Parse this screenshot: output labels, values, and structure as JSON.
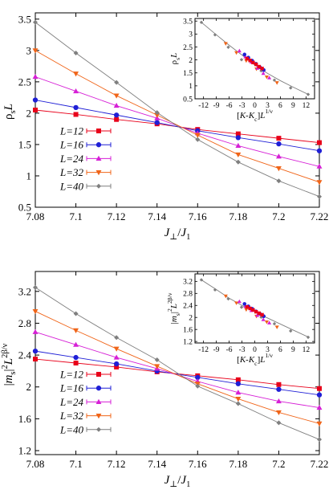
{
  "colors": {
    "L12": "#e8001a",
    "L16": "#1f1fd6",
    "L24": "#d61fd6",
    "L32": "#f06418",
    "L40": "#7f7f7f"
  },
  "chart_data": [
    {
      "type": "line",
      "panel": "top",
      "xlabel": "J⊥/J1",
      "ylabel": "ρsL",
      "xlim": [
        7.08,
        7.22
      ],
      "ylim": [
        0.5,
        3.6
      ],
      "xticks": [
        "7.08",
        "7.1",
        "7.12",
        "7.14",
        "7.16",
        "7.18",
        "7.2",
        "7.22"
      ],
      "yticks": [
        "0.5",
        "1",
        "1.5",
        "2",
        "2.5",
        "3",
        "3.5"
      ],
      "legend": [
        "L=12",
        "L=16",
        "L=24",
        "L=32",
        "L=40"
      ],
      "legend_placement": "bottom-left",
      "series": [
        {
          "name": "L=12",
          "markers": [
            [
              7.08,
              2.05
            ],
            [
              7.1,
              1.98
            ],
            [
              7.12,
              1.9
            ],
            [
              7.14,
              1.83
            ],
            [
              7.16,
              1.74
            ],
            [
              7.18,
              1.67
            ],
            [
              7.2,
              1.6
            ],
            [
              7.22,
              1.53
            ]
          ]
        },
        {
          "name": "L=16",
          "markers": [
            [
              7.08,
              2.21
            ],
            [
              7.1,
              2.09
            ],
            [
              7.12,
              1.97
            ],
            [
              7.14,
              1.85
            ],
            [
              7.16,
              1.72
            ],
            [
              7.18,
              1.61
            ],
            [
              7.2,
              1.51
            ],
            [
              7.22,
              1.4
            ]
          ]
        },
        {
          "name": "L=24",
          "markers": [
            [
              7.08,
              2.58
            ],
            [
              7.1,
              2.35
            ],
            [
              7.12,
              2.12
            ],
            [
              7.14,
              1.92
            ],
            [
              7.16,
              1.68
            ],
            [
              7.18,
              1.48
            ],
            [
              7.2,
              1.31
            ],
            [
              7.22,
              1.15
            ]
          ]
        },
        {
          "name": "L=32",
          "markers": [
            [
              7.08,
              3.0
            ],
            [
              7.1,
              2.63
            ],
            [
              7.12,
              2.28
            ],
            [
              7.14,
              1.97
            ],
            [
              7.16,
              1.65
            ],
            [
              7.18,
              1.34
            ],
            [
              7.2,
              1.12
            ],
            [
              7.22,
              0.9
            ]
          ]
        },
        {
          "name": "L=40",
          "markers": [
            [
              7.08,
              3.45
            ],
            [
              7.1,
              2.96
            ],
            [
              7.12,
              2.49
            ],
            [
              7.14,
              2.01
            ],
            [
              7.16,
              1.58
            ],
            [
              7.18,
              1.22
            ],
            [
              7.2,
              0.92
            ],
            [
              7.22,
              0.67
            ]
          ]
        }
      ],
      "inset": {
        "type": "scatter",
        "xlabel": "[K-Kc]L1/ν",
        "ylabel": "ρsL",
        "xlim": [
          -14,
          14
        ],
        "ylim": [
          0.5,
          3.6
        ],
        "xticks": [
          "-12",
          "-9",
          "-6",
          "-3",
          "0",
          "3",
          "6",
          "9",
          "12"
        ],
        "yticks": [
          "0.5",
          "1",
          "1.5",
          "2",
          "2.5",
          "3",
          "3.5"
        ],
        "curve": [
          [
            -12.5,
            3.45
          ],
          [
            -9,
            2.97
          ],
          [
            -6,
            2.57
          ],
          [
            -3,
            2.19
          ],
          [
            0,
            1.8
          ],
          [
            3,
            1.48
          ],
          [
            6,
            1.2
          ],
          [
            9,
            0.95
          ],
          [
            12.5,
            0.67
          ]
        ],
        "markers": [
          {
            "series": "L=40",
            "x": -12.5,
            "y": 3.45
          },
          {
            "series": "L=40",
            "x": -9.3,
            "y": 2.97
          },
          {
            "series": "L=40",
            "x": -6.2,
            "y": 2.49
          },
          {
            "series": "L=40",
            "x": -3.1,
            "y": 2.01
          },
          {
            "series": "L=40",
            "x": 1.5,
            "y": 1.58
          },
          {
            "series": "L=40",
            "x": 4.6,
            "y": 1.22
          },
          {
            "series": "L=40",
            "x": 8.4,
            "y": 0.92
          },
          {
            "series": "L=40",
            "x": 12.5,
            "y": 0.67
          },
          {
            "series": "L=32",
            "x": -6.8,
            "y": 2.63
          },
          {
            "series": "L=32",
            "x": -4.3,
            "y": 2.28
          },
          {
            "series": "L=32",
            "x": -2.0,
            "y": 1.97
          },
          {
            "series": "L=32",
            "x": 0.4,
            "y": 1.65
          },
          {
            "series": "L=32",
            "x": 2.8,
            "y": 1.34
          },
          {
            "series": "L=32",
            "x": 5.2,
            "y": 1.12
          },
          {
            "series": "L=24",
            "x": -3.6,
            "y": 2.35
          },
          {
            "series": "L=24",
            "x": -2.2,
            "y": 2.12
          },
          {
            "series": "L=24",
            "x": -0.8,
            "y": 1.92
          },
          {
            "series": "L=24",
            "x": 0.6,
            "y": 1.68
          },
          {
            "series": "L=24",
            "x": 2.0,
            "y": 1.48
          },
          {
            "series": "L=24",
            "x": 3.4,
            "y": 1.31
          },
          {
            "series": "L=16",
            "x": -2.4,
            "y": 2.21
          },
          {
            "series": "L=16",
            "x": -1.5,
            "y": 2.09
          },
          {
            "series": "L=16",
            "x": -0.6,
            "y": 1.97
          },
          {
            "series": "L=16",
            "x": 0.3,
            "y": 1.85
          },
          {
            "series": "L=16",
            "x": 1.2,
            "y": 1.72
          },
          {
            "series": "L=16",
            "x": 2.1,
            "y": 1.61
          },
          {
            "series": "L=12",
            "x": -1.8,
            "y": 2.05
          },
          {
            "series": "L=12",
            "x": -1.1,
            "y": 1.98
          },
          {
            "series": "L=12",
            "x": -0.4,
            "y": 1.9
          },
          {
            "series": "L=12",
            "x": 0.3,
            "y": 1.83
          },
          {
            "series": "L=12",
            "x": 1.0,
            "y": 1.74
          },
          {
            "series": "L=12",
            "x": 1.7,
            "y": 1.67
          }
        ]
      }
    },
    {
      "type": "line",
      "panel": "bottom",
      "xlabel": "J⊥/J1",
      "ylabel": "|ms|2L2β/ν",
      "xlim": [
        7.08,
        7.22
      ],
      "ylim": [
        1.15,
        3.45
      ],
      "xticks": [
        "7.08",
        "7.1",
        "7.12",
        "7.14",
        "7.16",
        "7.18",
        "7.2",
        "7.22"
      ],
      "yticks": [
        "1.2",
        "1.6",
        "2",
        "2.4",
        "2.8",
        "3.2"
      ],
      "legend": [
        "L=12",
        "L=16",
        "L=24",
        "L=32",
        "L=40"
      ],
      "legend_placement": "bottom-left",
      "series": [
        {
          "name": "L=12",
          "markers": [
            [
              7.08,
              2.35
            ],
            [
              7.1,
              2.3
            ],
            [
              7.12,
              2.25
            ],
            [
              7.14,
              2.19
            ],
            [
              7.16,
              2.14
            ],
            [
              7.18,
              2.09
            ],
            [
              7.2,
              2.03
            ],
            [
              7.22,
              1.98
            ]
          ]
        },
        {
          "name": "L=16",
          "markers": [
            [
              7.08,
              2.45
            ],
            [
              7.1,
              2.37
            ],
            [
              7.12,
              2.29
            ],
            [
              7.14,
              2.2
            ],
            [
              7.16,
              2.12
            ],
            [
              7.18,
              2.04
            ],
            [
              7.2,
              1.97
            ],
            [
              7.22,
              1.9
            ]
          ]
        },
        {
          "name": "L=24",
          "markers": [
            [
              7.08,
              2.69
            ],
            [
              7.1,
              2.53
            ],
            [
              7.12,
              2.37
            ],
            [
              7.14,
              2.23
            ],
            [
              7.16,
              2.07
            ],
            [
              7.18,
              1.93
            ],
            [
              7.2,
              1.82
            ],
            [
              7.22,
              1.74
            ]
          ]
        },
        {
          "name": "L=32",
          "markers": [
            [
              7.08,
              2.95
            ],
            [
              7.1,
              2.71
            ],
            [
              7.12,
              2.48
            ],
            [
              7.14,
              2.26
            ],
            [
              7.16,
              2.04
            ],
            [
              7.18,
              1.85
            ],
            [
              7.2,
              1.68
            ],
            [
              7.22,
              1.54
            ]
          ]
        },
        {
          "name": "L=40",
          "markers": [
            [
              7.08,
              3.25
            ],
            [
              7.1,
              2.92
            ],
            [
              7.12,
              2.62
            ],
            [
              7.14,
              2.34
            ],
            [
              7.16,
              2.01
            ],
            [
              7.18,
              1.79
            ],
            [
              7.2,
              1.55
            ],
            [
              7.22,
              1.34
            ]
          ]
        }
      ],
      "inset": {
        "type": "scatter",
        "xlabel": "[K-Kc]L1/ν",
        "ylabel": "|ms|2L2β/ν",
        "xlim": [
          -14,
          14
        ],
        "ylim": [
          1.15,
          3.45
        ],
        "xticks": [
          "-12",
          "-9",
          "-6",
          "-3",
          "0",
          "3",
          "6",
          "9",
          "12"
        ],
        "yticks": [
          "1.2",
          "1.6",
          "2",
          "2.4",
          "2.8",
          "3.2"
        ],
        "curve": [
          [
            -12.5,
            3.25
          ],
          [
            -9,
            2.93
          ],
          [
            -6,
            2.64
          ],
          [
            -3,
            2.4
          ],
          [
            0,
            2.19
          ],
          [
            3,
            1.98
          ],
          [
            6,
            1.78
          ],
          [
            9,
            1.58
          ],
          [
            12.5,
            1.35
          ]
        ],
        "markers": [
          {
            "series": "L=40",
            "x": -12.5,
            "y": 3.25
          },
          {
            "series": "L=40",
            "x": -9.3,
            "y": 2.92
          },
          {
            "series": "L=40",
            "x": -6.2,
            "y": 2.62
          },
          {
            "series": "L=40",
            "x": -3.1,
            "y": 2.34
          },
          {
            "series": "L=40",
            "x": 1.5,
            "y": 2.01
          },
          {
            "series": "L=40",
            "x": 4.6,
            "y": 1.79
          },
          {
            "series": "L=40",
            "x": 8.4,
            "y": 1.55
          },
          {
            "series": "L=40",
            "x": 12.5,
            "y": 1.34
          },
          {
            "series": "L=32",
            "x": -6.8,
            "y": 2.71
          },
          {
            "series": "L=32",
            "x": -4.3,
            "y": 2.48
          },
          {
            "series": "L=32",
            "x": -2.0,
            "y": 2.26
          },
          {
            "series": "L=32",
            "x": 0.4,
            "y": 2.04
          },
          {
            "series": "L=32",
            "x": 2.8,
            "y": 1.85
          },
          {
            "series": "L=32",
            "x": 5.2,
            "y": 1.68
          },
          {
            "series": "L=24",
            "x": -3.6,
            "y": 2.53
          },
          {
            "series": "L=24",
            "x": -2.2,
            "y": 2.37
          },
          {
            "series": "L=24",
            "x": -0.8,
            "y": 2.23
          },
          {
            "series": "L=24",
            "x": 0.6,
            "y": 2.07
          },
          {
            "series": "L=24",
            "x": 2.0,
            "y": 1.93
          },
          {
            "series": "L=24",
            "x": 3.4,
            "y": 1.82
          },
          {
            "series": "L=16",
            "x": -2.4,
            "y": 2.45
          },
          {
            "series": "L=16",
            "x": -1.5,
            "y": 2.37
          },
          {
            "series": "L=16",
            "x": -0.6,
            "y": 2.29
          },
          {
            "series": "L=16",
            "x": 0.3,
            "y": 2.2
          },
          {
            "series": "L=16",
            "x": 1.2,
            "y": 2.12
          },
          {
            "series": "L=16",
            "x": 2.1,
            "y": 2.04
          },
          {
            "series": "L=12",
            "x": -1.8,
            "y": 2.35
          },
          {
            "series": "L=12",
            "x": -1.1,
            "y": 2.3
          },
          {
            "series": "L=12",
            "x": -0.4,
            "y": 2.25
          },
          {
            "series": "L=12",
            "x": 0.3,
            "y": 2.19
          },
          {
            "series": "L=12",
            "x": 1.0,
            "y": 2.14
          },
          {
            "series": "L=12",
            "x": 1.7,
            "y": 2.09
          }
        ]
      }
    }
  ]
}
